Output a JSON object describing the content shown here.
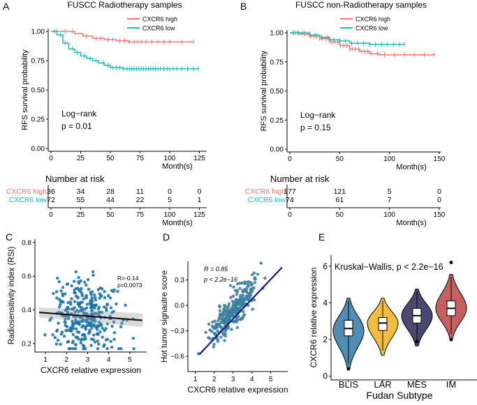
{
  "colors": {
    "high": "#f07b72",
    "low": "#1fbfc3",
    "scatterC": "#1a73b0",
    "scatterD": "#3c7f9f",
    "lineD": "#0e1a8c",
    "fitC": "#111111"
  },
  "chart_data": [
    {
      "panel": "A",
      "type": "line",
      "title": "FUSCC Radiotherapy samples",
      "xlabel": "Month(s)",
      "ylabel": "RFS survival probability",
      "xlim": [
        0,
        130
      ],
      "ylim": [
        0,
        1.0
      ],
      "x_ticks": [
        0,
        25,
        50,
        75,
        100,
        125
      ],
      "y_ticks": [
        0,
        0.25,
        0.5,
        0.75,
        1.0
      ],
      "y_tick_labels": [
        "0.00",
        "0.25",
        "0.50",
        "0.75",
        "1.00"
      ],
      "annotation": [
        "Log−rank",
        "p = 0.01"
      ],
      "series": [
        {
          "name": "CXCR6 high",
          "color": "high",
          "x": [
            0,
            10,
            20,
            27,
            35,
            45,
            55,
            65,
            120
          ],
          "y": [
            1.0,
            1.0,
            0.98,
            0.96,
            0.94,
            0.93,
            0.92,
            0.91,
            0.91
          ],
          "censor_x": [
            5,
            12,
            18,
            30,
            38,
            42,
            48,
            52,
            58,
            62,
            66,
            70,
            73,
            76,
            80,
            85,
            90,
            95,
            100,
            110,
            120
          ]
        },
        {
          "name": "CXCR6 low",
          "color": "low",
          "x": [
            0,
            5,
            10,
            15,
            20,
            25,
            30,
            35,
            40,
            45,
            50,
            60,
            125
          ],
          "y": [
            1.0,
            0.97,
            0.9,
            0.85,
            0.82,
            0.79,
            0.77,
            0.75,
            0.73,
            0.71,
            0.69,
            0.68,
            0.68
          ],
          "censor_x": [
            3,
            8,
            12,
            18,
            22,
            28,
            33,
            38,
            44,
            48,
            52,
            55,
            58,
            61,
            64,
            66,
            68,
            70,
            72,
            74,
            76,
            78,
            80,
            82,
            84,
            86,
            88,
            90,
            92,
            95,
            98,
            100,
            103,
            106,
            110,
            115,
            120,
            124
          ]
        }
      ],
      "risk_table": {
        "title": "Number at risk",
        "xlabel": "Month(s)",
        "time_points": [
          0,
          25,
          50,
          75,
          100,
          125
        ],
        "rows": [
          {
            "label": "CXCR6 high",
            "color": "high",
            "values": [
              "36",
              "34",
              "28",
              "11",
              "0",
              "0"
            ]
          },
          {
            "label": "CXCR6 low",
            "color": "low",
            "values": [
              "72",
              "55",
              "44",
              "22",
              "5",
              "1"
            ]
          }
        ]
      }
    },
    {
      "panel": "B",
      "type": "line",
      "title": "FUSCC non-Radiotherapy samples",
      "xlabel": "Month(s)",
      "ylabel": "RFS survival probability",
      "xlim": [
        0,
        150
      ],
      "ylim": [
        0,
        1.0
      ],
      "x_ticks": [
        0,
        50,
        100,
        150
      ],
      "y_ticks": [
        0,
        0.25,
        0.5,
        0.75,
        1.0
      ],
      "y_tick_labels": [
        "0.00",
        "0.25",
        "0.50",
        "0.75",
        "1.00"
      ],
      "annotation": [
        "Log−rank",
        "p = 0.15"
      ],
      "series": [
        {
          "name": "CXCR6 high",
          "color": "high",
          "x": [
            0,
            10,
            20,
            30,
            40,
            50,
            60,
            70,
            80,
            90,
            145
          ],
          "y": [
            1.0,
            0.99,
            0.97,
            0.95,
            0.92,
            0.89,
            0.86,
            0.84,
            0.82,
            0.81,
            0.81
          ],
          "censor_x": [
            3,
            6,
            9,
            12,
            15,
            18,
            21,
            24,
            27,
            30,
            33,
            36,
            39,
            42,
            45,
            48,
            51,
            54,
            57,
            60,
            63,
            66,
            69,
            72,
            75,
            78,
            82,
            88,
            95,
            105,
            115,
            125,
            135,
            145
          ]
        },
        {
          "name": "CXCR6 low",
          "color": "low",
          "x": [
            0,
            10,
            20,
            30,
            40,
            50,
            60,
            80,
            115
          ],
          "y": [
            1.0,
            1.0,
            0.98,
            0.96,
            0.94,
            0.93,
            0.91,
            0.9,
            0.9
          ],
          "censor_x": [
            4,
            8,
            14,
            20,
            26,
            32,
            38,
            44,
            50,
            56,
            62,
            68,
            74,
            80,
            86,
            92,
            98,
            104,
            110,
            115
          ]
        }
      ],
      "risk_table": {
        "title": "Number at risk",
        "xlabel": "Month(s)",
        "time_points": [
          0,
          50,
          100,
          150
        ],
        "rows": [
          {
            "label": "CXCR6 high",
            "color": "high",
            "values": [
              "177",
              "121",
              "5",
              "0"
            ]
          },
          {
            "label": "CXCR6 low",
            "color": "low",
            "values": [
              "74",
              "61",
              "7",
              "0"
            ]
          }
        ]
      }
    },
    {
      "panel": "C",
      "type": "scatter",
      "xlabel": "CXCR6 relative expression",
      "ylabel": "Radiosensitivity index (RSI)",
      "xlim": [
        0.5,
        5.8
      ],
      "ylim": [
        0.15,
        0.82
      ],
      "x_ticks": [
        1,
        2,
        3,
        4,
        5
      ],
      "y_ticks": [
        0.2,
        0.4,
        0.6,
        0.8
      ],
      "y_tick_labels": [
        "0.2",
        "0.4",
        "0.6",
        "0.8"
      ],
      "annotation": [
        "R=-0.14",
        "p=0.0073"
      ],
      "fit": {
        "x": [
          0.7,
          5.6
        ],
        "y": [
          0.385,
          0.338
        ]
      },
      "point_count": 330,
      "x_center": 2.85,
      "x_sd": 0.75,
      "y_center": 0.36,
      "y_sd": 0.11
    },
    {
      "panel": "D",
      "type": "scatter",
      "xlabel": "CXCR6 relative expression",
      "ylabel": "Hot tumor signautre score",
      "xlim": [
        0.6,
        5.9
      ],
      "ylim": [
        -0.78,
        0.52
      ],
      "x_ticks": [
        1,
        2,
        3,
        4,
        5
      ],
      "y_ticks": [
        -0.6,
        -0.3,
        0.0,
        0.3
      ],
      "y_tick_labels": [
        "−0.6",
        "−0.3",
        "0.0",
        "0.3"
      ],
      "annotation": [
        "R = 0.85",
        "p < 2.2e−16"
      ],
      "fit": {
        "x": [
          1.2,
          5.6
        ],
        "y": [
          -0.58,
          0.45
        ]
      },
      "point_count": 300,
      "x_center": 3.05,
      "x_sd": 0.65,
      "y_center": -0.05,
      "y_sd": 0.19
    },
    {
      "panel": "E",
      "type": "violin",
      "title": "Kruskal−Wallis, p < 2.2e−16",
      "xlabel": "Fudan Subtype",
      "ylabel": "CXCR6 relative expression",
      "ylim": [
        -0.2,
        6.6
      ],
      "y_ticks": [
        0,
        2,
        4,
        6
      ],
      "y_tick_labels": [
        "0",
        "2",
        "4",
        "6"
      ],
      "categories": [
        "BLIS",
        "LAR",
        "MES",
        "IM"
      ],
      "groups": [
        {
          "name": "BLIS",
          "color": "#4f8eb2",
          "min": 0.7,
          "q1": 2.2,
          "median": 2.6,
          "q3": 3.05,
          "max": 4.1,
          "outliers": [
            0.4
          ],
          "density_peak": 2.5
        },
        {
          "name": "LAR",
          "color": "#f2bc3c",
          "min": 1.4,
          "q1": 2.5,
          "median": 2.9,
          "q3": 3.2,
          "max": 4.1,
          "outliers": [],
          "density_peak": 2.9
        },
        {
          "name": "MES",
          "color": "#4a4870",
          "min": 1.9,
          "q1": 2.9,
          "median": 3.3,
          "q3": 3.7,
          "max": 4.6,
          "outliers": [
            1.9
          ],
          "density_peak": 3.3
        },
        {
          "name": "IM",
          "color": "#c75f5f",
          "min": 2.3,
          "q1": 3.3,
          "median": 3.7,
          "q3": 4.1,
          "max": 5.4,
          "outliers": [
            2.0,
            6.2
          ],
          "density_peak": 3.7
        }
      ]
    }
  ],
  "panel_letters": {
    "a": "A",
    "b": "B",
    "c": "C",
    "d": "D",
    "e": "E"
  }
}
